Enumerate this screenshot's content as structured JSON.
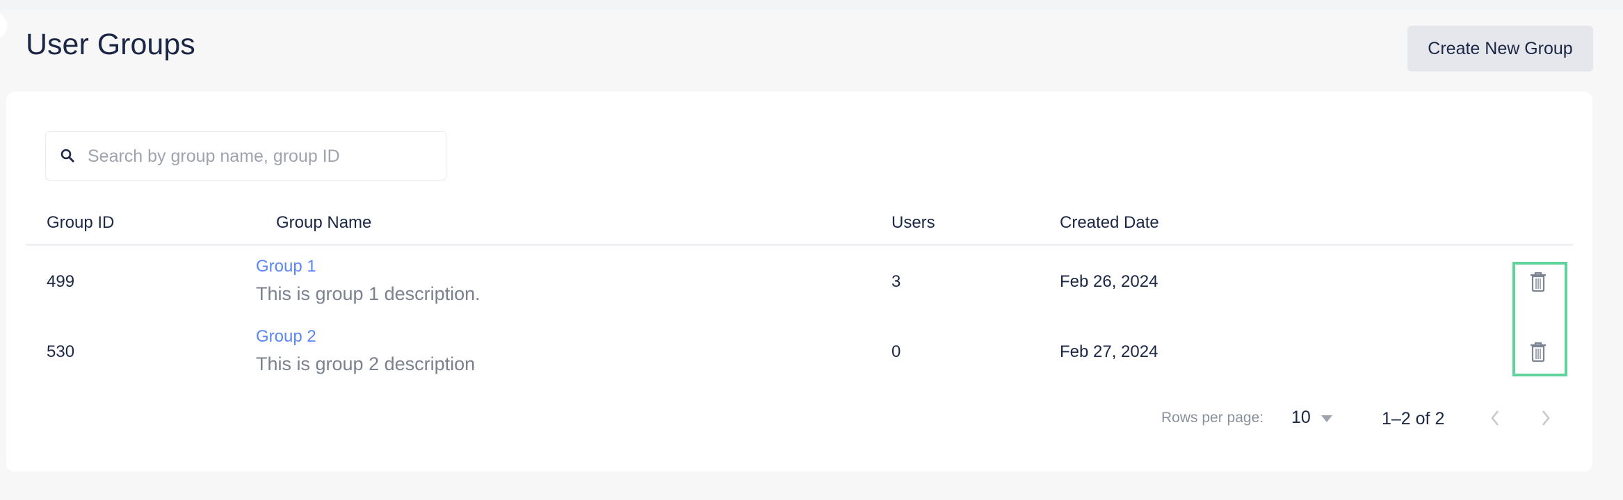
{
  "header": {
    "title": "User Groups",
    "create_label": "Create New Group"
  },
  "search": {
    "placeholder": "Search by group name, group ID",
    "value": ""
  },
  "table": {
    "columns": [
      "Group ID",
      "Group Name",
      "Users",
      "Created Date"
    ],
    "rows": [
      {
        "id": "499",
        "name": "Group 1",
        "description": "This is group 1 description.",
        "users": "3",
        "created": "Feb 26, 2024"
      },
      {
        "id": "530",
        "name": "Group 2",
        "description": "This is group 2 description",
        "users": "0",
        "created": "Feb 27, 2024"
      }
    ]
  },
  "pagination": {
    "rows_per_page_label": "Rows per page:",
    "rows_per_page": "10",
    "range": "1–2 of 2"
  },
  "colors": {
    "link": "#5b86f5",
    "highlight": "#5fd39b"
  }
}
